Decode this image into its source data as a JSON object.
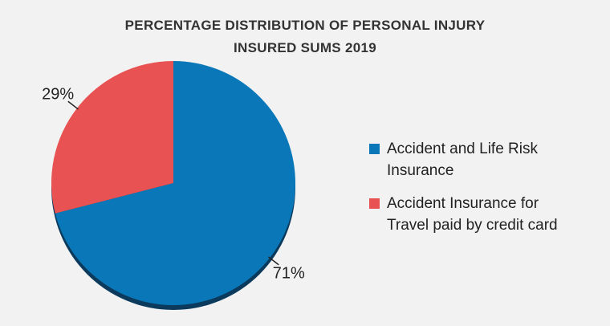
{
  "chart_data": {
    "type": "pie",
    "title": "PERCENTAGE DISTRIBUTION OF PERSONAL INJURY INSURED SUMS 2019",
    "title_lines": [
      "PERCENTAGE DISTRIBUTION OF PERSONAL INJURY",
      "INSURED SUMS 2019"
    ],
    "slices": [
      {
        "name": "Accident and Life Risk Insurance",
        "legend_lines": [
          "Accident and Life Risk",
          "Insurance"
        ],
        "value": 71,
        "label": "71%",
        "color": "#0a78b8"
      },
      {
        "name": "Accident Insurance for Travel paid by credit card",
        "legend_lines": [
          "Accident Insurance for",
          "Travel paid by credit card"
        ],
        "value": 29,
        "label": "29%",
        "color": "#e85252"
      }
    ],
    "legend_position": "right",
    "start": "12 o'clock",
    "direction": "clockwise"
  }
}
